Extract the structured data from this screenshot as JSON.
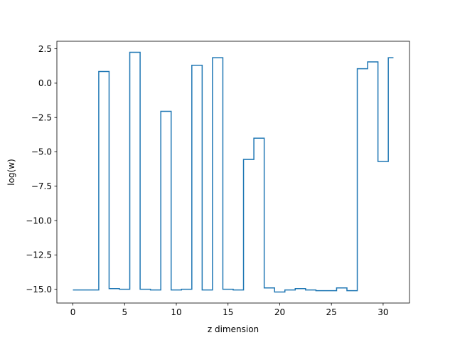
{
  "chart_data": {
    "type": "line",
    "drawstyle": "steps-mid",
    "title": "",
    "xlabel": "z dimension",
    "ylabel": "log(w)",
    "xlim": [
      -1.55,
      32.55
    ],
    "ylim": [
      -16.0,
      3.05
    ],
    "grid": false,
    "line_color": "#1f77b4",
    "x_ticks": [
      0,
      5,
      10,
      15,
      20,
      25,
      30
    ],
    "x_tick_labels": [
      "0",
      "5",
      "10",
      "15",
      "20",
      "25",
      "30"
    ],
    "y_ticks": [
      2.5,
      0.0,
      -2.5,
      -5.0,
      -7.5,
      -10.0,
      -12.5,
      -15.0
    ],
    "y_tick_labels": [
      "2.5",
      "0.0",
      "−2.5",
      "−5.0",
      "−7.5",
      "−10.0",
      "−12.5",
      "−15.0"
    ],
    "series": [
      {
        "x": [
          0,
          1,
          2,
          3,
          4,
          5,
          6,
          7,
          8,
          9,
          10,
          11,
          12,
          13,
          14,
          15,
          16,
          17,
          18,
          19,
          20,
          21,
          22,
          23,
          24,
          25,
          26,
          27,
          28,
          29,
          30,
          31
        ],
        "values": [
          -15.05,
          -15.05,
          -15.05,
          0.85,
          -14.95,
          -15.0,
          2.25,
          -15.0,
          -15.05,
          -2.05,
          -15.05,
          -15.0,
          1.3,
          -15.05,
          1.85,
          -15.0,
          -15.05,
          -5.55,
          -4.0,
          -14.9,
          -15.2,
          -15.05,
          -14.95,
          -15.05,
          -15.1,
          -15.1,
          -14.9,
          -15.1,
          1.05,
          1.55,
          -5.7,
          1.85
        ]
      }
    ]
  }
}
